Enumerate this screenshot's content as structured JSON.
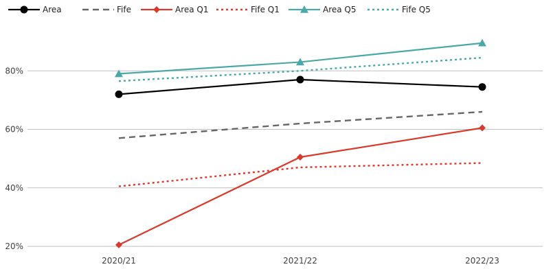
{
  "chart_data": {
    "type": "line",
    "title": "",
    "xlabel": "",
    "ylabel": "",
    "categories": [
      "2020/21",
      "2021/22",
      "2022/23"
    ],
    "y_ticks": [
      "20%",
      "40%",
      "60%",
      "80%"
    ],
    "ylim": [
      20,
      100
    ],
    "grid": "horizontal",
    "legend_position": "top-left",
    "series": [
      {
        "name": "Area",
        "values": [
          72,
          77,
          74.5
        ],
        "color": "#000000",
        "style": "solid",
        "marker": "circle"
      },
      {
        "name": "Fife",
        "values": [
          57,
          62,
          66
        ],
        "color": "#666666",
        "style": "dashed",
        "marker": "none"
      },
      {
        "name": "Area Q1",
        "values": [
          20.5,
          50.5,
          60.5
        ],
        "color": "#d93a2b",
        "style": "solid",
        "marker": "diamond"
      },
      {
        "name": "Fife Q1",
        "values": [
          40.5,
          47,
          48.5
        ],
        "color": "#e0372a",
        "style": "dotted",
        "marker": "none"
      },
      {
        "name": "Area Q5",
        "values": [
          79,
          83,
          89.5
        ],
        "color": "#4aa8a8",
        "style": "solid",
        "marker": "triangle"
      },
      {
        "name": "Fife Q5",
        "values": [
          76.5,
          80,
          84.5
        ],
        "color": "#4aa8a8",
        "style": "dotted",
        "marker": "none"
      }
    ]
  }
}
